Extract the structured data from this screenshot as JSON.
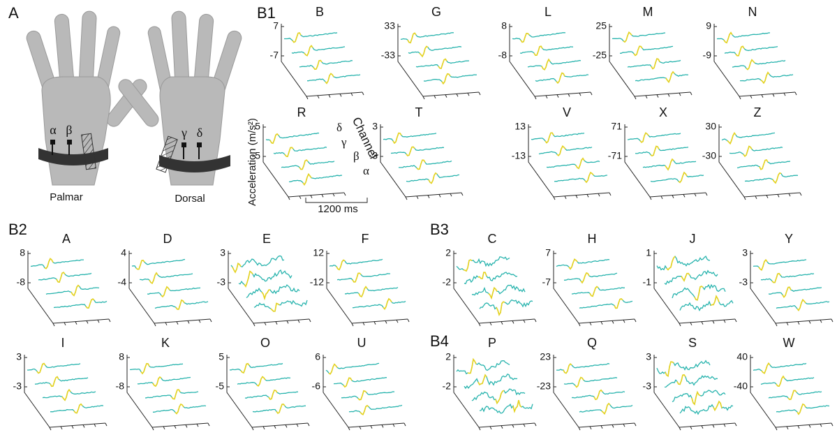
{
  "panel_a": {
    "label": "A",
    "palmar": "Palmar",
    "dorsal": "Dorsal",
    "sensors": [
      "α",
      "β",
      "γ",
      "δ"
    ]
  },
  "annotations": {
    "y_axis": "Acceleration (m/s²)",
    "channel": "Channel",
    "channels": [
      "δ",
      "γ",
      "β",
      "α"
    ],
    "time_scale": "1200 ms"
  },
  "groups": [
    {
      "label": "B1",
      "plots": [
        {
          "title": "B",
          "yticks": [
            -7,
            7
          ]
        },
        {
          "title": "G",
          "yticks": [
            -33,
            33
          ]
        },
        {
          "title": "L",
          "yticks": [
            -8,
            8
          ]
        },
        {
          "title": "M",
          "yticks": [
            -25,
            25
          ]
        },
        {
          "title": "N",
          "yticks": [
            -9,
            9
          ]
        },
        {
          "title": "R",
          "yticks": [
            -5,
            5
          ]
        },
        {
          "title": "T",
          "yticks": [
            -3,
            3
          ]
        },
        {
          "title": "V",
          "yticks": [
            -13,
            13
          ]
        },
        {
          "title": "X",
          "yticks": [
            -71,
            71
          ]
        },
        {
          "title": "Z",
          "yticks": [
            -30,
            30
          ]
        }
      ]
    },
    {
      "label": "B2",
      "plots": [
        {
          "title": "A",
          "yticks": [
            -8,
            8
          ]
        },
        {
          "title": "D",
          "yticks": [
            -4,
            4
          ]
        },
        {
          "title": "E",
          "yticks": [
            -3,
            3
          ]
        },
        {
          "title": "F",
          "yticks": [
            -12,
            12
          ]
        },
        {
          "title": "I",
          "yticks": [
            -3,
            3
          ]
        },
        {
          "title": "K",
          "yticks": [
            -8,
            8
          ]
        },
        {
          "title": "O",
          "yticks": [
            -5,
            5
          ]
        },
        {
          "title": "U",
          "yticks": [
            -6,
            6
          ]
        }
      ]
    },
    {
      "label": "B3",
      "plots": [
        {
          "title": "C",
          "yticks": [
            -2,
            2
          ]
        },
        {
          "title": "H",
          "yticks": [
            -7,
            7
          ]
        },
        {
          "title": "J",
          "yticks": [
            -1,
            1
          ]
        },
        {
          "title": "Y",
          "yticks": [
            -3,
            3
          ]
        }
      ]
    },
    {
      "label": "B4",
      "plots": [
        {
          "title": "P",
          "yticks": [
            -2,
            2
          ]
        },
        {
          "title": "Q",
          "yticks": [
            -23,
            23
          ]
        },
        {
          "title": "S",
          "yticks": [
            -3,
            3
          ]
        },
        {
          "title": "W",
          "yticks": [
            -40,
            40
          ]
        }
      ]
    }
  ]
}
